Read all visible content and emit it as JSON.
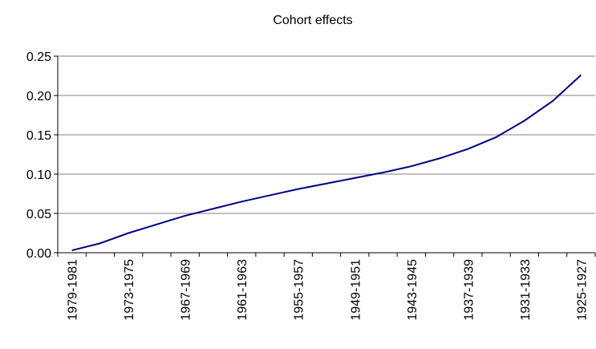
{
  "chart_data": {
    "type": "line",
    "title": "Cohort effects",
    "categories": [
      "1979-1981",
      null,
      "1973-1975",
      null,
      "1967-1969",
      null,
      "1961-1963",
      null,
      "1955-1957",
      null,
      "1949-1951",
      null,
      "1943-1945",
      null,
      "1937-1939",
      null,
      "1931-1933",
      null,
      "1925-1927"
    ],
    "series": [
      {
        "color": "#000080",
        "values": [
          0.003,
          0.012,
          0.025,
          0.036,
          0.047,
          0.056,
          0.065,
          0.073,
          0.081,
          0.088,
          0.095,
          0.102,
          0.11,
          0.12,
          0.132,
          0.147,
          0.168,
          0.193,
          0.226
        ]
      }
    ],
    "ylim": [
      0,
      0.25
    ],
    "yticks": [
      {
        "value": 0,
        "label": "0.00"
      },
      0.05,
      {
        "value": 0.1,
        "label": "0.10"
      },
      0.15,
      {
        "value": 0.2,
        "label": "0.20"
      },
      0.25
    ],
    "grid": true
  }
}
